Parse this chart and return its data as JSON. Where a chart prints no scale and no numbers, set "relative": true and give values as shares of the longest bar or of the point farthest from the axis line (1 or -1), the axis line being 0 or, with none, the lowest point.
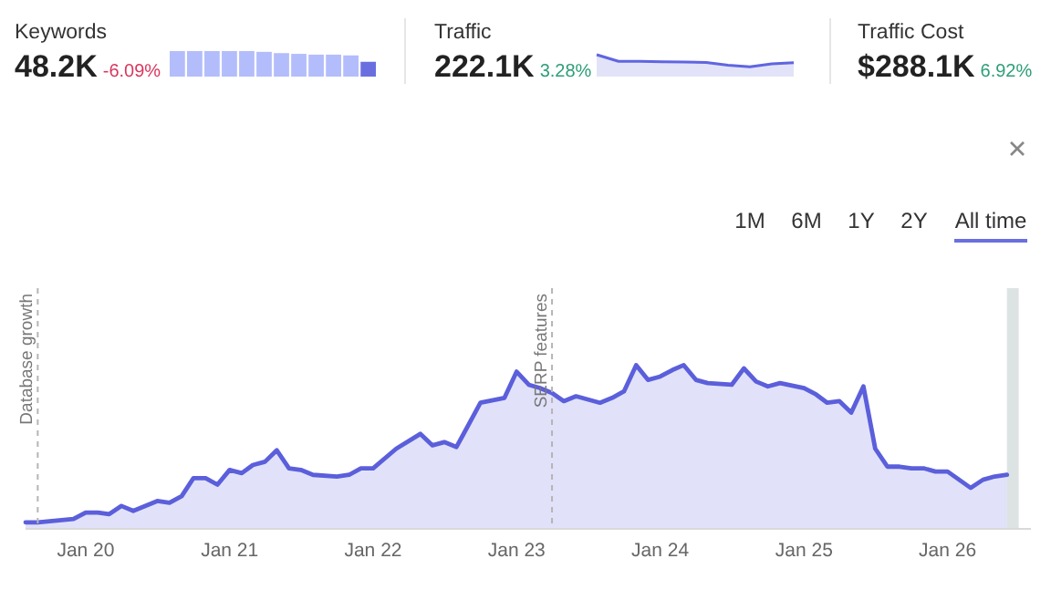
{
  "chart_data": [
    {
      "type": "other",
      "annotations": [
        "Keywords",
        "48.2K",
        "-6.09%",
        "Traffic",
        "222.1K",
        "3.28%",
        "Traffic Cost",
        "$288.1K",
        "6.92%"
      ]
    },
    {
      "type": "bar",
      "relative": true,
      "categories": [
        null,
        null,
        null,
        null,
        null,
        null,
        null,
        null,
        null,
        null,
        null,
        null
      ],
      "values": [
        1,
        1,
        1,
        1,
        1,
        0.97,
        0.92,
        0.89,
        0.86,
        0.86,
        0.83,
        0.58
      ],
      "colors": [
        "#b3bdfb",
        "#b3bdfb",
        "#b3bdfb",
        "#b3bdfb",
        "#b3bdfb",
        "#b3bdfb",
        "#b3bdfb",
        "#b3bdfb",
        "#b3bdfb",
        "#b3bdfb",
        "#b3bdfb",
        "#6a6fe0"
      ]
    },
    {
      "type": "area",
      "relative": true,
      "categories": [
        null,
        null,
        null,
        null,
        null,
        null,
        null,
        null,
        null,
        null
      ],
      "series": [
        {
          "color": "#6065e0",
          "values": [
            1,
            0.7,
            0.7,
            0.68,
            0.67,
            0.65,
            0.52,
            0.45,
            0.58,
            0.64
          ]
        }
      ]
    },
    {
      "type": "area",
      "relative": true,
      "xlim": [
        "2019-08",
        "2026-08"
      ],
      "xticks": [
        {
          "value": "2020-01",
          "label": "Jan 20"
        },
        {
          "value": "2021-01",
          "label": "Jan 21"
        },
        {
          "value": "2022-01",
          "label": "Jan 22"
        },
        {
          "value": "2023-01",
          "label": "Jan 23"
        },
        {
          "value": "2024-01",
          "label": "Jan 24"
        },
        {
          "value": "2025-01",
          "label": "Jan 25"
        },
        {
          "value": "2026-01",
          "label": "Jan 26"
        }
      ],
      "x": [
        "2019-08",
        "2019-09",
        "2019-12",
        "2020-01",
        "2020-02",
        "2020-03",
        "2020-04",
        "2020-05",
        "2020-07",
        "2020-08",
        "2020-09",
        "2020-10",
        "2020-11",
        "2020-12",
        "2021-01",
        "2021-02",
        "2021-03",
        "2021-04",
        "2021-05",
        "2021-06",
        "2021-07",
        "2021-08",
        "2021-10",
        "2021-11",
        "2021-12",
        "2022-01",
        "2022-03",
        "2022-05",
        "2022-06",
        "2022-07",
        "2022-08",
        "2022-10",
        "2022-12",
        "2023-01",
        "2023-02",
        "2023-03",
        "2023-04",
        "2023-05",
        "2023-06",
        "2023-08",
        "2023-09",
        "2023-10",
        "2023-11",
        "2023-12",
        "2024-01",
        "2024-02",
        "2024-03",
        "2024-04",
        "2024-05",
        "2024-07",
        "2024-08",
        "2024-09",
        "2024-10",
        "2024-11",
        "2025-01",
        "2025-02",
        "2025-03",
        "2025-04",
        "2025-05",
        "2025-06",
        "2025-07",
        "2025-08",
        "2025-09",
        "2025-10",
        "2025-11",
        "2025-12",
        "2026-01",
        "2026-03",
        "2026-04",
        "2026-05",
        "2026-06"
      ],
      "series": [
        {
          "color": "#5b5fdb",
          "values": [
            0.04,
            0.04,
            0.06,
            0.1,
            0.1,
            0.09,
            0.14,
            0.11,
            0.17,
            0.16,
            0.2,
            0.31,
            0.31,
            0.27,
            0.36,
            0.34,
            0.39,
            0.41,
            0.48,
            0.37,
            0.36,
            0.33,
            0.32,
            0.33,
            0.37,
            0.37,
            0.49,
            0.58,
            0.51,
            0.53,
            0.5,
            0.77,
            0.8,
            0.96,
            0.88,
            0.86,
            0.83,
            0.78,
            0.81,
            0.77,
            0.8,
            0.84,
            1,
            0.91,
            0.93,
            0.97,
            1,
            0.91,
            0.89,
            0.88,
            0.98,
            0.9,
            0.87,
            0.89,
            0.86,
            0.82,
            0.77,
            0.78,
            0.71,
            0.87,
            0.49,
            0.38,
            0.38,
            0.37,
            0.37,
            0.35,
            0.35,
            0.25,
            0.3,
            0.32,
            0.33
          ]
        }
      ],
      "ref_lines": [
        {
          "axis": "x",
          "value": "2019-09",
          "label": "Database growth"
        },
        {
          "axis": "x",
          "value": "2023-04",
          "label": "SERP features"
        }
      ],
      "bands": [
        {
          "axis": "x",
          "from": "2026-06",
          "to": "2026-07",
          "color": "#dde3e3"
        }
      ],
      "annotations": [
        "1M",
        "6M",
        "1Y",
        "2Y",
        "All time"
      ]
    }
  ]
}
